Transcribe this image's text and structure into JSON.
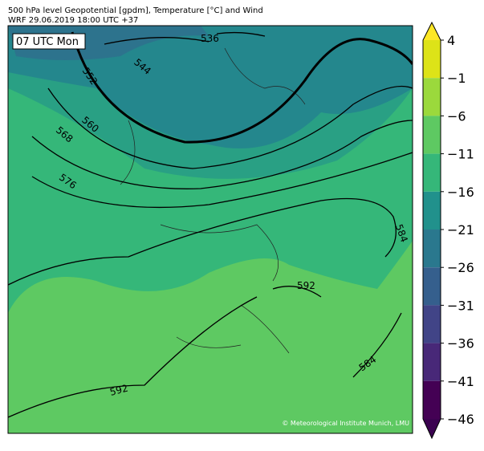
{
  "header": {
    "line1": "500 hPa level Geopotential [gpdm], Temperature [°C] and Wind",
    "line2": "WRF 29.06.2019 18:00 UTC +37"
  },
  "time_label": "07 UTC Mon",
  "contour_labels": [
    "536",
    "544",
    "552",
    "560",
    "568",
    "576",
    "584",
    "592",
    "584",
    "592"
  ],
  "credit": "© Meteorological Institute Munich, LMU",
  "colorbar": {
    "lim": [
      -46,
      4
    ],
    "ticks": [
      4,
      {
        "value": -1,
        "label": "−1"
      },
      {
        "value": -6,
        "label": "−6"
      },
      {
        "value": -11,
        "label": "−11"
      },
      {
        "value": -16,
        "label": "−16"
      },
      {
        "value": -21,
        "label": "−21"
      },
      {
        "value": -26,
        "label": "−26"
      },
      {
        "value": -31,
        "label": "−31"
      },
      {
        "value": -36,
        "label": "−36"
      },
      {
        "value": -41,
        "label": "−41"
      },
      {
        "value": -46,
        "label": "−46"
      }
    ],
    "colors": [
      "#dde318",
      "#9bd93c",
      "#5ec962",
      "#35b779",
      "#21918c",
      "#2a788e",
      "#355f8d",
      "#414487",
      "#482878",
      "#440154"
    ],
    "over_color": "#fde725",
    "under_color": "#3b0250"
  }
}
